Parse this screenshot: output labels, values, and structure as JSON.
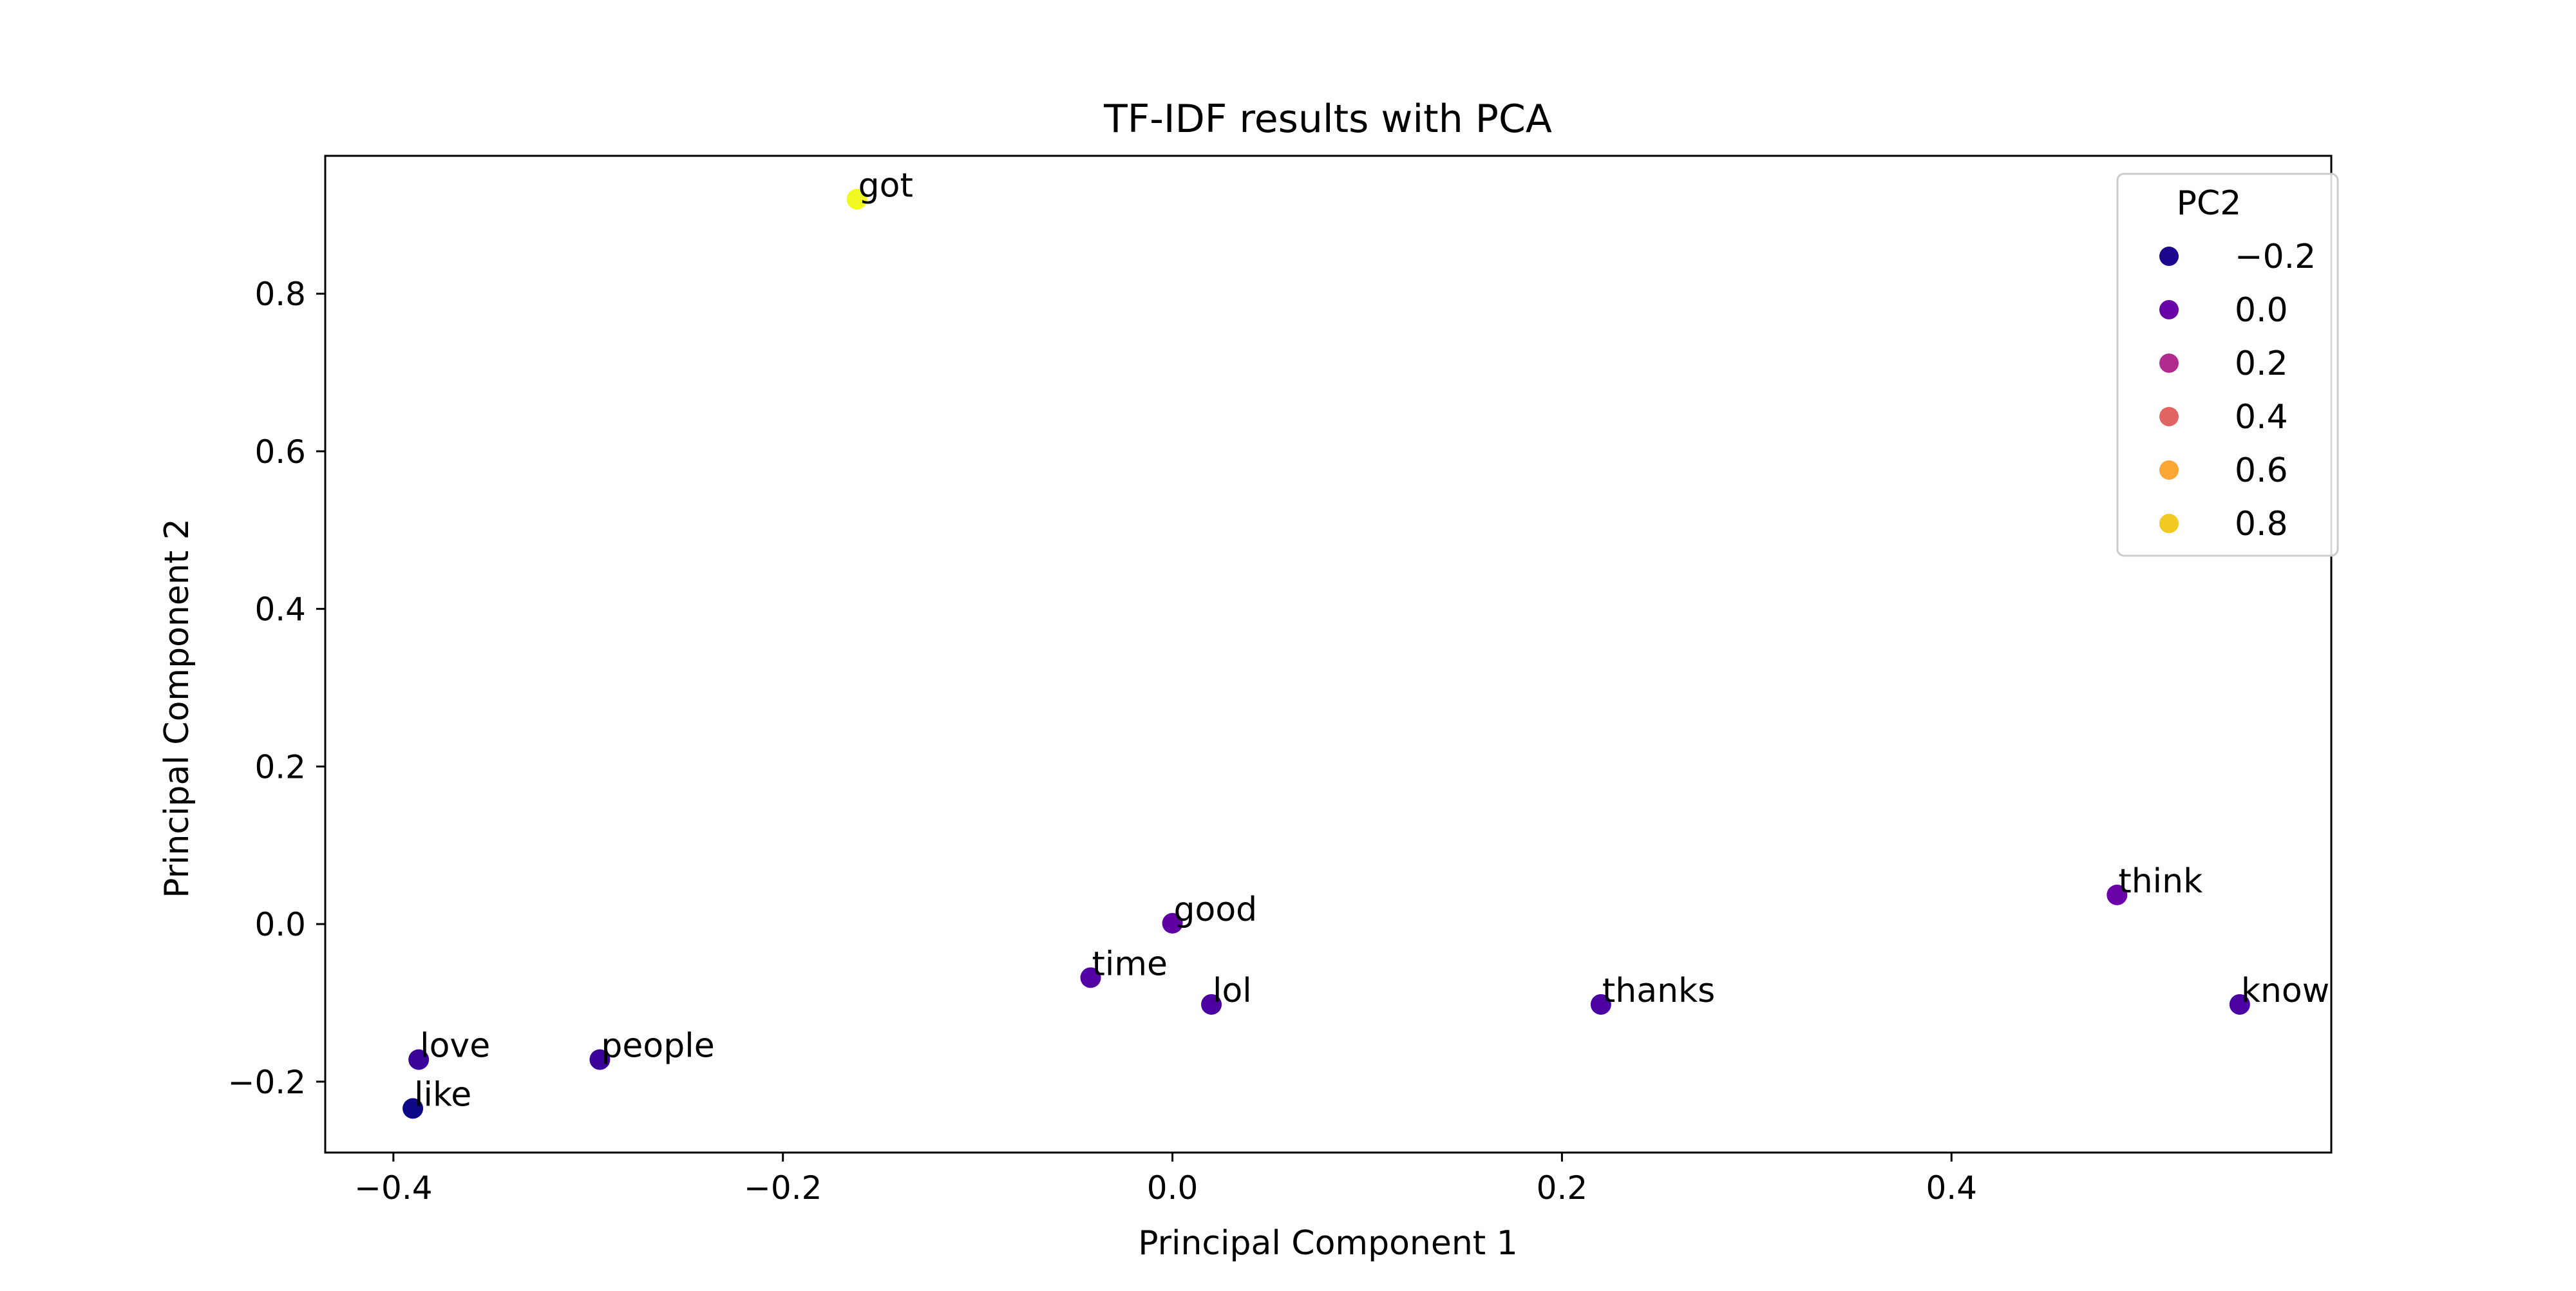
{
  "chart_data": {
    "type": "scatter",
    "title": "TF-IDF results with PCA",
    "xlabel": "Principal Component 1",
    "ylabel": "Principal Component 2",
    "xlim": [
      -0.435,
      0.595
    ],
    "ylim": [
      -0.29,
      0.975
    ],
    "xticks": [
      -0.4,
      -0.2,
      0.0,
      0.2,
      0.4
    ],
    "xtick_labels": [
      "−0.4",
      "−0.2",
      "0.0",
      "0.2",
      "0.4"
    ],
    "yticks": [
      -0.2,
      0.0,
      0.2,
      0.4,
      0.6,
      0.8
    ],
    "ytick_labels": [
      "−0.2",
      "0.0",
      "0.2",
      "0.4",
      "0.6",
      "0.8"
    ],
    "grid": false,
    "colormap": "plasma",
    "color_by": "y",
    "points": [
      {
        "label": "got",
        "x": -0.162,
        "y": 0.92,
        "color": "#f0f921"
      },
      {
        "label": "think",
        "x": 0.485,
        "y": 0.037,
        "color": "#6a00a8"
      },
      {
        "label": "good",
        "x": 0.0,
        "y": 0.001,
        "color": "#6001a6"
      },
      {
        "label": "time",
        "x": -0.042,
        "y": -0.068,
        "color": "#5302a3"
      },
      {
        "label": "lol",
        "x": 0.02,
        "y": -0.102,
        "color": "#4c02a1"
      },
      {
        "label": "thanks",
        "x": 0.22,
        "y": -0.102,
        "color": "#4c02a1"
      },
      {
        "label": "know",
        "x": 0.548,
        "y": -0.102,
        "color": "#4c02a1"
      },
      {
        "label": "love",
        "x": -0.387,
        "y": -0.172,
        "color": "#3a049a"
      },
      {
        "label": "people",
        "x": -0.294,
        "y": -0.172,
        "color": "#3a049a"
      },
      {
        "label": "like",
        "x": -0.39,
        "y": -0.234,
        "color": "#0d0887"
      }
    ],
    "legend": {
      "title": "PC2",
      "placement": "upper right",
      "entries": [
        {
          "label": "−0.2",
          "color": "#1b068d"
        },
        {
          "label": "0.0",
          "color": "#6a00a8"
        },
        {
          "label": "0.2",
          "color": "#b12a90"
        },
        {
          "label": "0.4",
          "color": "#e16462"
        },
        {
          "label": "0.6",
          "color": "#fca636"
        },
        {
          "label": "0.8",
          "color": "#f0c921"
        }
      ]
    }
  }
}
